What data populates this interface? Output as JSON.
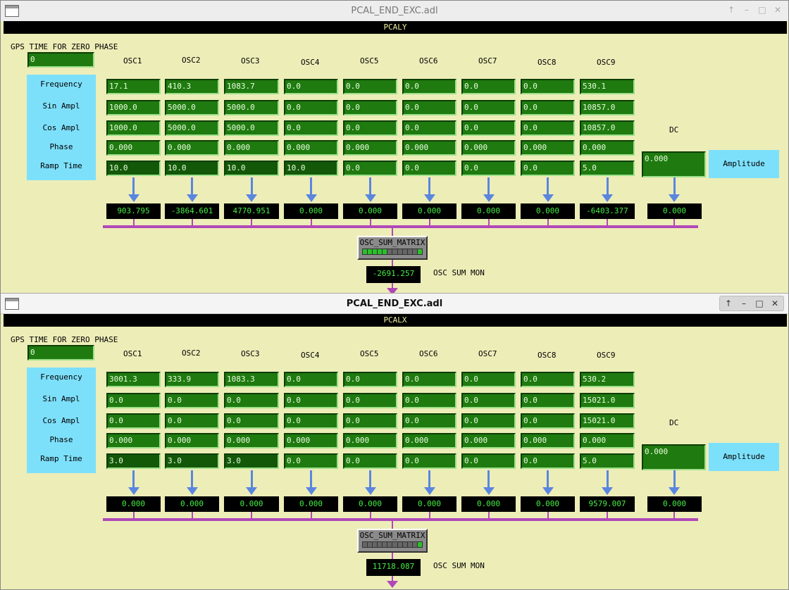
{
  "windows": [
    {
      "title": "PCAL_END_EXC.adl",
      "header": "PCALY",
      "gps_label": "GPS TIME FOR ZERO PHASE",
      "gps_value": "0",
      "osc_labels": [
        "OSC1",
        "OSC2",
        "OSC3",
        "OSC4",
        "OSC5",
        "OSC6",
        "OSC7",
        "OSC8",
        "OSC9"
      ],
      "row_labels": [
        "Frequency",
        "Sin Ampl",
        "Cos Ampl",
        "Phase",
        "Ramp Time"
      ],
      "rows": [
        [
          "17.1",
          "410.3",
          "1083.7",
          "0.0",
          "0.0",
          "0.0",
          "0.0",
          "0.0",
          "530.1"
        ],
        [
          "1000.0",
          "5000.0",
          "5000.0",
          "0.0",
          "0.0",
          "0.0",
          "0.0",
          "0.0",
          "10857.0"
        ],
        [
          "1000.0",
          "5000.0",
          "5000.0",
          "0.0",
          "0.0",
          "0.0",
          "0.0",
          "0.0",
          "10857.0"
        ],
        [
          "0.000",
          "0.000",
          "0.000",
          "0.000",
          "0.000",
          "0.000",
          "0.000",
          "0.000",
          "0.000"
        ],
        [
          "10.0",
          "10.0",
          "10.0",
          "10.0",
          "0.0",
          "0.0",
          "0.0",
          "0.0",
          "5.0"
        ]
      ],
      "dc_label": "DC",
      "dc_value": "0.000",
      "amplitude_label": "Amplitude",
      "outputs": [
        "903.795",
        "-3864.601",
        "4770.951",
        "0.000",
        "0.000",
        "0.000",
        "0.000",
        "0.000",
        "-6403.377",
        "0.000"
      ],
      "matrix_label": "OSC_SUM_MATRIX",
      "matrix_segments": [
        1,
        1,
        1,
        1,
        1,
        0,
        0,
        0,
        0,
        0,
        0,
        1
      ],
      "sum_value": "-2691.257",
      "sum_label": "OSC SUM MON"
    },
    {
      "title": "PCAL_END_EXC.adl",
      "header": "PCALX",
      "gps_label": "GPS TIME FOR ZERO PHASE",
      "gps_value": "0",
      "osc_labels": [
        "OSC1",
        "OSC2",
        "OSC3",
        "OSC4",
        "OSC5",
        "OSC6",
        "OSC7",
        "OSC8",
        "OSC9"
      ],
      "row_labels": [
        "Frequency",
        "Sin Ampl",
        "Cos Ampl",
        "Phase",
        "Ramp Time"
      ],
      "rows": [
        [
          "3001.3",
          "333.9",
          "1083.3",
          "0.0",
          "0.0",
          "0.0",
          "0.0",
          "0.0",
          "530.2"
        ],
        [
          "0.0",
          "0.0",
          "0.0",
          "0.0",
          "0.0",
          "0.0",
          "0.0",
          "0.0",
          "15021.0"
        ],
        [
          "0.0",
          "0.0",
          "0.0",
          "0.0",
          "0.0",
          "0.0",
          "0.0",
          "0.0",
          "15021.0"
        ],
        [
          "0.000",
          "0.000",
          "0.000",
          "0.000",
          "0.000",
          "0.000",
          "0.000",
          "0.000",
          "0.000"
        ],
        [
          "3.0",
          "3.0",
          "3.0",
          "0.0",
          "0.0",
          "0.0",
          "0.0",
          "0.0",
          "5.0"
        ]
      ],
      "dc_label": "DC",
      "dc_value": "0.000",
      "amplitude_label": "Amplitude",
      "outputs": [
        "0.000",
        "0.000",
        "0.000",
        "0.000",
        "0.000",
        "0.000",
        "0.000",
        "0.000",
        "9579.007",
        "0.000"
      ],
      "matrix_label": "OSC_SUM_MATRIX",
      "matrix_segments": [
        0,
        0,
        0,
        0,
        0,
        0,
        0,
        0,
        0,
        0,
        0,
        1
      ],
      "sum_value": "11718.087",
      "sum_label": "OSC SUM MON"
    }
  ],
  "colors": {
    "panel_bg": "#ededb8",
    "field_green": "#1f7a0f",
    "readout_text": "#44ee44",
    "label_cyan": "#7de0fb",
    "arrow_blue": "#5a86e0",
    "bus_magenta": "#b048b8"
  }
}
